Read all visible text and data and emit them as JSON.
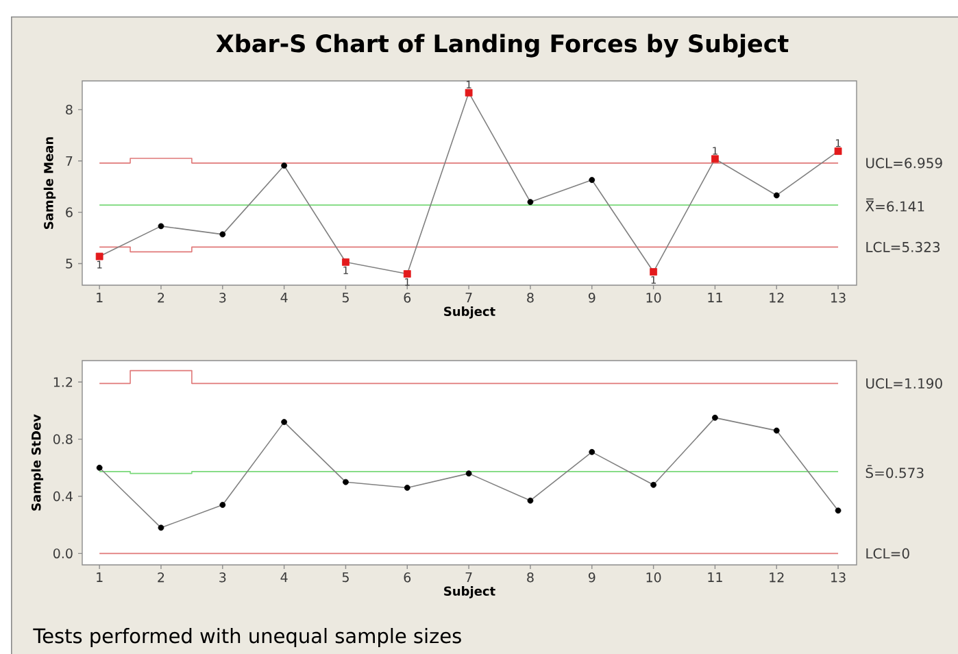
{
  "chart_data": [
    {
      "type": "line",
      "title": "Xbar-S Chart of Landing Forces by Subject",
      "xlabel": "Subject",
      "ylabel": "Sample Mean",
      "x": [
        1,
        2,
        3,
        4,
        5,
        6,
        7,
        8,
        9,
        10,
        11,
        12,
        13
      ],
      "xlim": [
        0.72,
        13.3
      ],
      "xticks": [
        1,
        2,
        3,
        4,
        5,
        6,
        7,
        8,
        9,
        10,
        11,
        12,
        13
      ],
      "ylim": [
        4.58,
        8.56
      ],
      "yticks": [
        5,
        6,
        7,
        8
      ],
      "series": [
        {
          "type": "step",
          "name": "UCL=6.959",
          "color": "#e07878",
          "values": [
            6.959,
            7.05,
            6.959,
            6.959,
            6.959,
            6.959,
            6.959,
            6.959,
            6.959,
            6.959,
            6.959,
            6.959,
            6.959
          ]
        },
        {
          "type": "step",
          "name": "X̿=6.141",
          "color": "#78d878",
          "values": [
            6.141,
            6.141,
            6.141,
            6.141,
            6.141,
            6.141,
            6.141,
            6.141,
            6.141,
            6.141,
            6.141,
            6.141,
            6.141
          ]
        },
        {
          "type": "step",
          "name": "LCL=5.323",
          "color": "#e07878",
          "values": [
            5.323,
            5.23,
            5.323,
            5.323,
            5.323,
            5.323,
            5.323,
            5.323,
            5.323,
            5.323,
            5.323,
            5.323,
            5.323
          ]
        },
        {
          "type": "line",
          "color": "#808080",
          "values": [
            5.14,
            5.73,
            5.57,
            6.91,
            5.03,
            4.8,
            8.33,
            6.2,
            6.63,
            4.84,
            7.04,
            6.33,
            7.19
          ]
        },
        {
          "type": "scatter",
          "color": "#000000",
          "marker": "circle",
          "x": [
            2,
            3,
            4,
            8,
            9,
            12
          ],
          "values": [
            5.73,
            5.57,
            6.91,
            6.2,
            6.63,
            6.33
          ]
        },
        {
          "type": "scatter",
          "color": "#e31a1c",
          "marker": "square",
          "x": [
            1,
            5,
            6,
            7,
            10,
            11,
            13
          ],
          "values": [
            5.14,
            5.03,
            4.8,
            8.33,
            4.84,
            7.04,
            7.19
          ]
        }
      ],
      "annotations": [
        {
          "text": "1",
          "x": 1,
          "y": 5.14
        },
        {
          "text": "1",
          "x": 5,
          "y": 5.03
        },
        {
          "text": "1",
          "x": 6,
          "y": 4.8
        },
        {
          "text": "1",
          "x": 7,
          "y": 8.33
        },
        {
          "text": "1",
          "x": 10,
          "y": 4.84
        },
        {
          "text": "1",
          "x": 11,
          "y": 7.04
        },
        {
          "text": "1",
          "x": 13,
          "y": 7.19
        }
      ]
    },
    {
      "type": "line",
      "xlabel": "Subject",
      "ylabel": "Sample StDev",
      "x": [
        1,
        2,
        3,
        4,
        5,
        6,
        7,
        8,
        9,
        10,
        11,
        12,
        13
      ],
      "xlim": [
        0.72,
        13.3
      ],
      "xticks": [
        1,
        2,
        3,
        4,
        5,
        6,
        7,
        8,
        9,
        10,
        11,
        12,
        13
      ],
      "ylim": [
        -0.08,
        1.35
      ],
      "yticks": [
        {
          "value": 0,
          "label": "0.0"
        },
        0.4,
        0.8,
        1.2
      ],
      "series": [
        {
          "type": "step",
          "name": "UCL=1.190",
          "color": "#e07878",
          "values": [
            1.19,
            1.28,
            1.19,
            1.19,
            1.19,
            1.19,
            1.19,
            1.19,
            1.19,
            1.19,
            1.19,
            1.19,
            1.19
          ]
        },
        {
          "type": "step",
          "name": "S̄=0.573",
          "color": "#78d878",
          "values": [
            0.573,
            0.56,
            0.573,
            0.573,
            0.573,
            0.573,
            0.573,
            0.573,
            0.573,
            0.573,
            0.573,
            0.573,
            0.573
          ]
        },
        {
          "type": "step",
          "name": "LCL=0",
          "color": "#e07878",
          "values": [
            0,
            0,
            0,
            0,
            0,
            0,
            0,
            0,
            0,
            0,
            0,
            0,
            0
          ]
        },
        {
          "type": "line",
          "color": "#808080",
          "values": [
            0.6,
            0.18,
            0.34,
            0.92,
            0.5,
            0.46,
            0.56,
            0.37,
            0.71,
            0.48,
            0.95,
            0.86,
            0.3
          ]
        },
        {
          "type": "scatter",
          "color": "#000000",
          "marker": "circle",
          "values": [
            0.6,
            0.18,
            0.34,
            0.92,
            0.5,
            0.46,
            0.56,
            0.37,
            0.71,
            0.48,
            0.95,
            0.86,
            0.3
          ]
        }
      ],
      "annotations": [
        "Tests performed with unequal sample sizes"
      ]
    }
  ]
}
